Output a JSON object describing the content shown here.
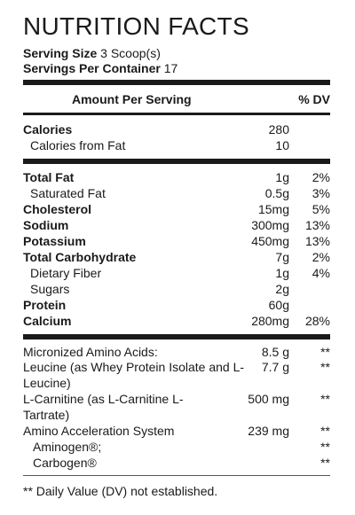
{
  "title": "NUTRITION FACTS",
  "serving": {
    "size_label": "Serving Size",
    "size_value": "3 Scoop(s)",
    "per_container_label": "Servings Per Container",
    "per_container_value": "17"
  },
  "header": {
    "amount": "Amount Per Serving",
    "dv": "% DV"
  },
  "calories": [
    {
      "label": "Calories",
      "amount": "280",
      "dv": ""
    },
    {
      "label": "Calories from Fat",
      "amount": "10",
      "dv": ""
    }
  ],
  "nutrients": [
    {
      "label": "Total Fat",
      "amount": "1g",
      "dv": "2%"
    },
    {
      "label": "Saturated Fat",
      "amount": "0.5g",
      "dv": "3%"
    },
    {
      "label": "Cholesterol",
      "amount": "15mg",
      "dv": "5%"
    },
    {
      "label": "Sodium",
      "amount": "300mg",
      "dv": "13%"
    },
    {
      "label": "Potassium",
      "amount": "450mg",
      "dv": "13%"
    },
    {
      "label": "Total Carbohydrate",
      "amount": "7g",
      "dv": "2%"
    },
    {
      "label": "Dietary Fiber",
      "amount": "1g",
      "dv": "4%"
    },
    {
      "label": "Sugars",
      "amount": "2g",
      "dv": ""
    },
    {
      "label": "Protein",
      "amount": "60g",
      "dv": ""
    },
    {
      "label": "Calcium",
      "amount": "280mg",
      "dv": "28%"
    }
  ],
  "additional": [
    {
      "label": "Micronized Amino Acids:",
      "amount": "8.5 g",
      "dv": "**"
    },
    {
      "label": "Leucine (as Whey Protein Isolate and L-Leucine)",
      "amount": "7.7 g",
      "dv": "**"
    },
    {
      "label": "L-Carnitine (as L-Carnitine L-Tartrate)",
      "amount": "500 mg",
      "dv": "**"
    },
    {
      "label": "Amino Acceleration System",
      "amount": "239 mg",
      "dv": "**"
    },
    {
      "label": "Aminogen®;",
      "amount": "",
      "dv": "**"
    },
    {
      "label": "Carbogen®",
      "amount": "",
      "dv": "**"
    }
  ],
  "footnote": "** Daily Value (DV) not established."
}
